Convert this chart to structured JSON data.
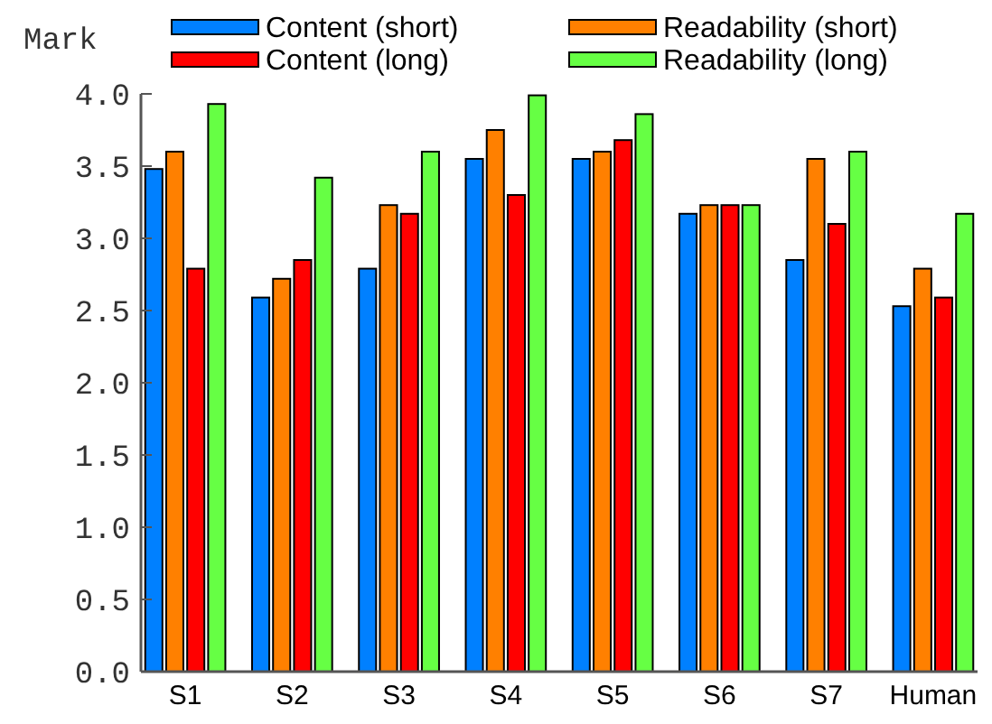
{
  "chart_data": {
    "type": "bar",
    "ylabel": "Mark",
    "categories": [
      "S1",
      "S2",
      "S3",
      "S4",
      "S5",
      "S6",
      "S7",
      "Human"
    ],
    "series": [
      {
        "name": "Content (short)",
        "color": "#0080ff",
        "values": [
          3.48,
          2.59,
          2.79,
          3.55,
          3.55,
          3.17,
          2.85,
          2.53
        ]
      },
      {
        "name": "Readability (short)",
        "color": "#ff8000",
        "values": [
          3.6,
          2.72,
          3.23,
          3.75,
          3.6,
          3.23,
          3.55,
          2.79
        ]
      },
      {
        "name": "Content (long)",
        "color": "#ff0000",
        "values": [
          2.79,
          2.85,
          3.17,
          3.3,
          3.68,
          3.23,
          3.1,
          2.59
        ]
      },
      {
        "name": "Readability (long)",
        "color": "#66ff44",
        "values": [
          3.93,
          3.42,
          3.6,
          3.99,
          3.86,
          3.23,
          3.6,
          3.17
        ]
      }
    ],
    "ylim": [
      0,
      4
    ],
    "yticks": [
      {
        "value": 0,
        "label": "0.0"
      },
      {
        "value": 0.5,
        "label": "0.5"
      },
      {
        "value": 1,
        "label": "1.0"
      },
      {
        "value": 1.5,
        "label": "1.5"
      },
      {
        "value": 2,
        "label": "2.0"
      },
      {
        "value": 2.5,
        "label": "2.5"
      },
      {
        "value": 3,
        "label": "3.0"
      },
      {
        "value": 3.5,
        "label": "3.5"
      },
      {
        "value": 4,
        "label": "4.0"
      }
    ],
    "grid": false,
    "legend": "top"
  }
}
